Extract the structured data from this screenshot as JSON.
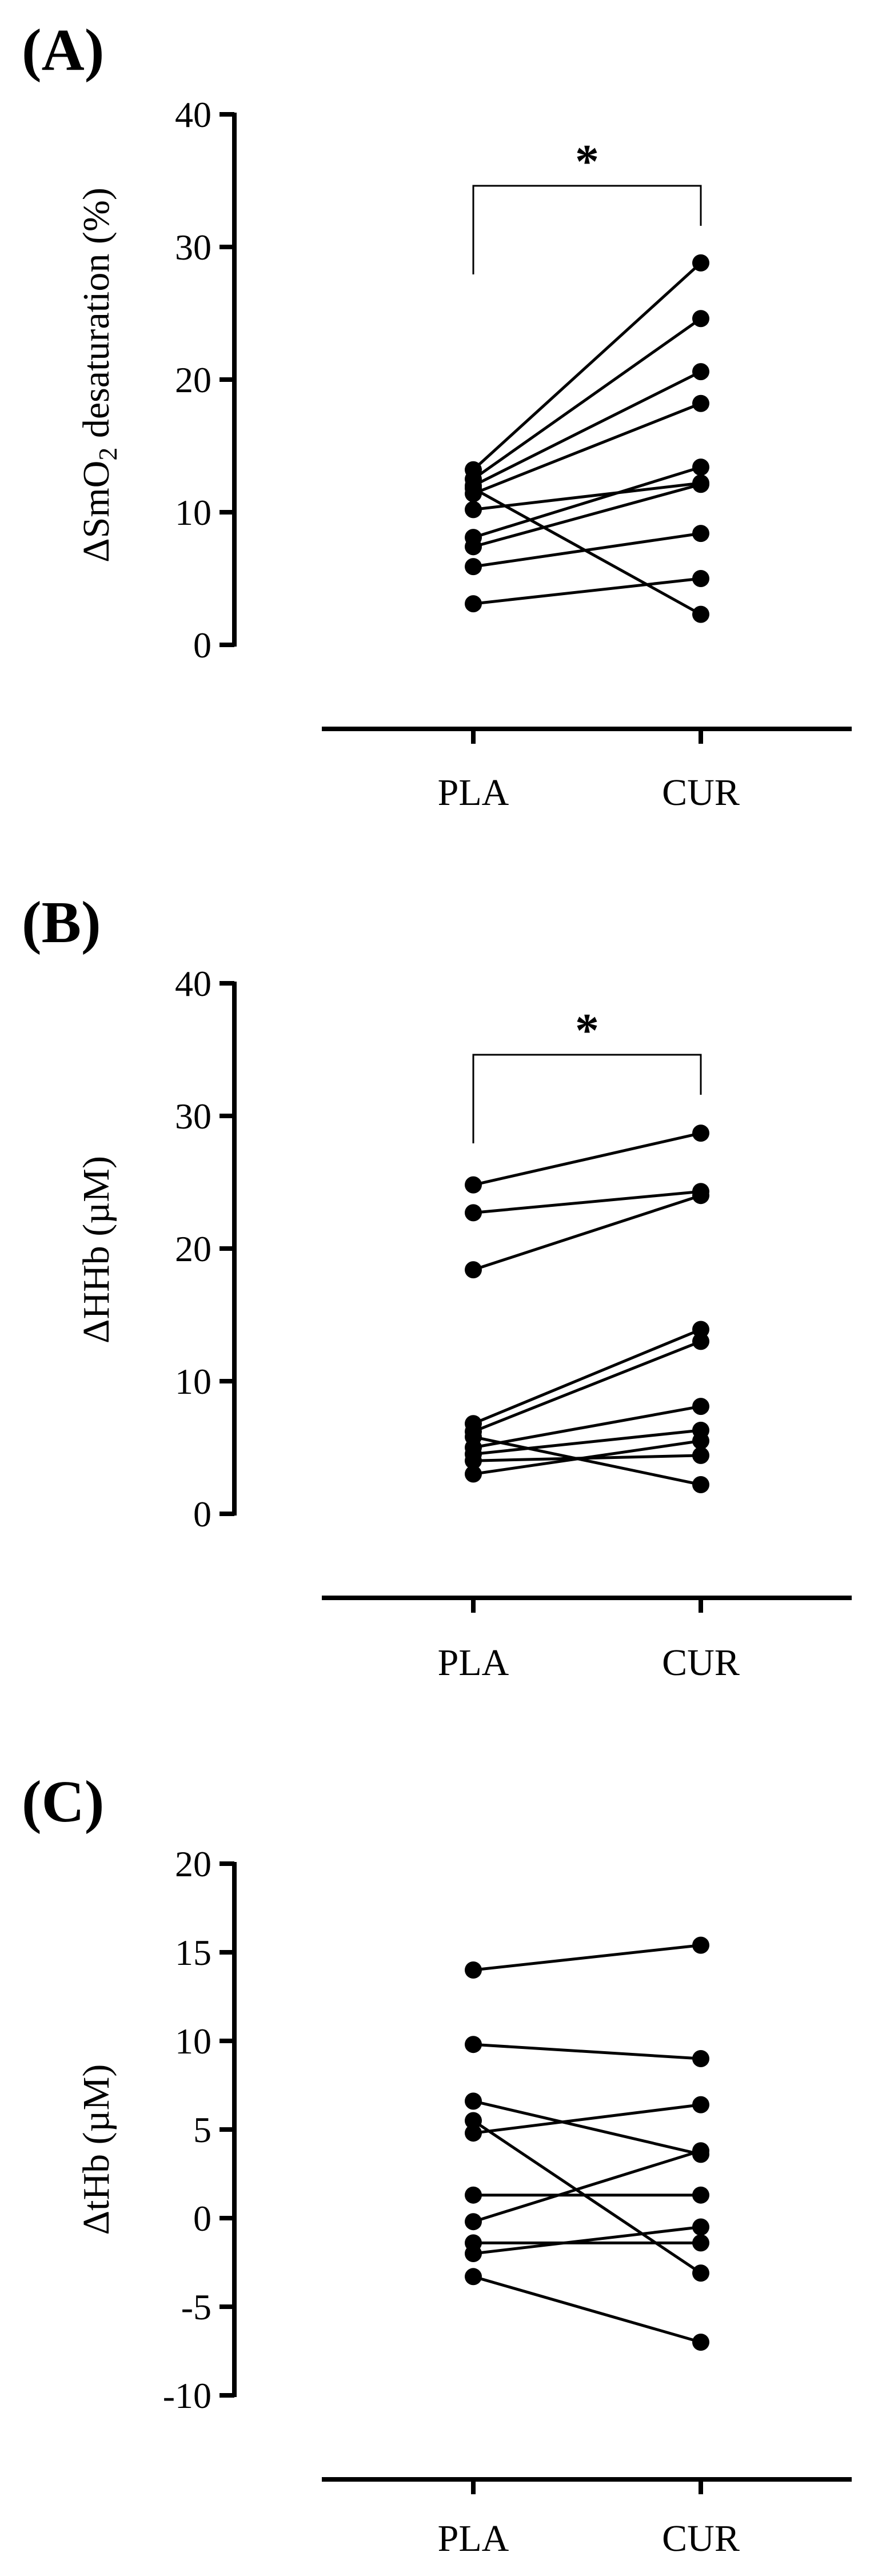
{
  "figure": {
    "background": "#ffffff",
    "line_color": "#000000",
    "marker_color": "#000000"
  },
  "chart_data": [
    {
      "type": "scatter",
      "style": "paired-lines",
      "panel_label": "(A)",
      "ylabel": {
        "main": "ΔSmO",
        "sub": "2",
        "rest": " desaturation (%)"
      },
      "xlabel": "",
      "categories": [
        "PLA",
        "CUR"
      ],
      "ylim": [
        0,
        40
      ],
      "yticks": [
        0,
        10,
        20,
        30,
        40
      ],
      "ytick_labels": [
        "0",
        "10",
        "20",
        "30",
        "40"
      ],
      "grid": false,
      "significance": {
        "label": "*",
        "between": [
          "PLA",
          "CUR"
        ]
      },
      "pairs": [
        [
          13.2,
          28.8
        ],
        [
          12.5,
          24.6
        ],
        [
          12.0,
          20.6
        ],
        [
          11.4,
          18.2
        ],
        [
          10.2,
          12.2
        ],
        [
          8.1,
          13.4
        ],
        [
          7.4,
          12.1
        ],
        [
          5.9,
          8.4
        ],
        [
          3.1,
          5.0
        ],
        [
          11.8,
          2.3
        ]
      ]
    },
    {
      "type": "scatter",
      "style": "paired-lines",
      "panel_label": "(B)",
      "ylabel": {
        "main": "ΔHHb (µM)",
        "sub": "",
        "rest": ""
      },
      "xlabel": "",
      "categories": [
        "PLA",
        "CUR"
      ],
      "ylim": [
        0,
        40
      ],
      "yticks": [
        0,
        10,
        20,
        30,
        40
      ],
      "ytick_labels": [
        "0",
        "10",
        "20",
        "30",
        "40"
      ],
      "grid": false,
      "significance": {
        "label": "*",
        "between": [
          "PLA",
          "CUR"
        ]
      },
      "pairs": [
        [
          24.8,
          28.7
        ],
        [
          22.7,
          24.3
        ],
        [
          18.4,
          24.0
        ],
        [
          6.8,
          13.9
        ],
        [
          6.2,
          13.0
        ],
        [
          5.0,
          8.1
        ],
        [
          4.5,
          6.3
        ],
        [
          3.0,
          5.5
        ],
        [
          4.0,
          4.4
        ],
        [
          5.8,
          2.2
        ]
      ]
    },
    {
      "type": "scatter",
      "style": "paired-lines",
      "panel_label": "(C)",
      "ylabel": {
        "main": "ΔtHb (µM)",
        "sub": "",
        "rest": ""
      },
      "xlabel": "",
      "categories": [
        "PLA",
        "CUR"
      ],
      "ylim": [
        -10,
        20
      ],
      "yticks": [
        -10,
        -5,
        0,
        5,
        10,
        15,
        20
      ],
      "ytick_labels": [
        "-10",
        "-5",
        "0",
        "5",
        "10",
        "15",
        "20"
      ],
      "grid": false,
      "significance": null,
      "pairs": [
        [
          14.0,
          15.4
        ],
        [
          9.8,
          9.0
        ],
        [
          6.6,
          3.6
        ],
        [
          5.5,
          -3.1
        ],
        [
          4.8,
          6.4
        ],
        [
          1.3,
          1.3
        ],
        [
          -0.2,
          3.8
        ],
        [
          -1.4,
          -1.4
        ],
        [
          -2.0,
          -0.5
        ],
        [
          -3.3,
          -7.0
        ]
      ]
    }
  ]
}
